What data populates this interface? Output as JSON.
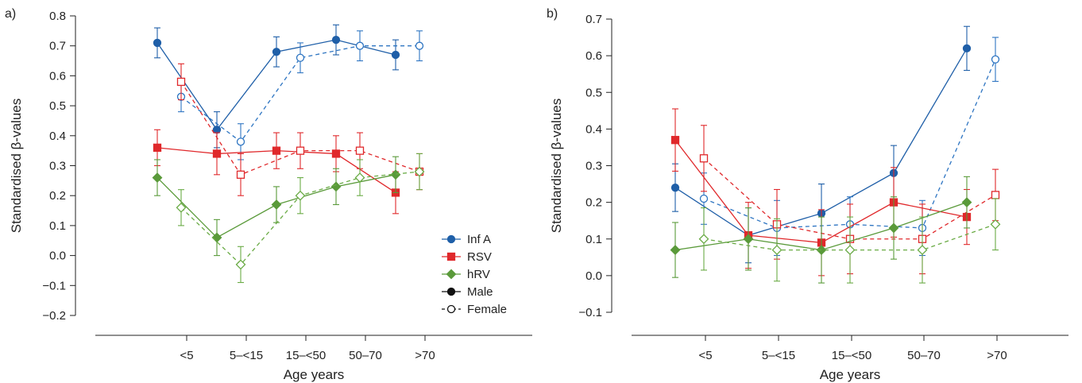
{
  "chart_data": [
    {
      "type": "line",
      "panel_label": "a)",
      "xlabel": "Age years",
      "ylabel": "Standardised β-values",
      "categories": [
        "<5",
        "5–<15",
        "15–<50",
        "50–70",
        ">70"
      ],
      "ylim": [
        -0.2,
        0.8
      ],
      "yticks": [
        "0.8",
        "0.7",
        "0.6",
        "0.5",
        "0.4",
        "0.3",
        "0.2",
        "0.1",
        "0.0",
        "−0.1",
        "−0.2"
      ],
      "grid": false,
      "legend_position": "bottom-right",
      "series": [
        {
          "name": "Inf A",
          "sex": "Male",
          "color": "#1f5fa8",
          "values": [
            0.71,
            0.42,
            0.68,
            0.72,
            0.67
          ],
          "err": [
            0.05,
            0.06,
            0.05,
            0.05,
            0.05
          ]
        },
        {
          "name": "Inf A",
          "sex": "Female",
          "color": "#2e75c2",
          "values": [
            0.53,
            0.38,
            0.66,
            0.7,
            0.7
          ],
          "err": [
            0.05,
            0.06,
            0.05,
            0.05,
            0.05
          ]
        },
        {
          "name": "RSV",
          "sex": "Male",
          "color": "#e0282b",
          "values": [
            0.36,
            0.34,
            0.35,
            0.34,
            0.21
          ],
          "err": [
            0.06,
            0.07,
            0.06,
            0.06,
            0.07
          ]
        },
        {
          "name": "RSV",
          "sex": "Female",
          "color": "#e0282b",
          "values": [
            0.58,
            0.27,
            0.35,
            0.35,
            0.28
          ],
          "err": [
            0.06,
            0.07,
            0.06,
            0.06,
            0.06
          ]
        },
        {
          "name": "hRV",
          "sex": "Male",
          "color": "#5a9a3a",
          "values": [
            0.26,
            0.06,
            0.17,
            0.23,
            0.27
          ],
          "err": [
            0.06,
            0.06,
            0.06,
            0.06,
            0.06
          ]
        },
        {
          "name": "hRV",
          "sex": "Female",
          "color": "#6aab45",
          "values": [
            0.16,
            -0.03,
            0.2,
            0.26,
            0.28
          ],
          "err": [
            0.06,
            0.06,
            0.06,
            0.06,
            0.06
          ]
        }
      ],
      "legend": [
        {
          "label": "Inf A",
          "marker": "circle",
          "color": "#1f5fa8"
        },
        {
          "label": "RSV",
          "marker": "square",
          "color": "#e0282b"
        },
        {
          "label": "hRV",
          "marker": "diamond",
          "color": "#5a9a3a"
        },
        {
          "label": "Male",
          "marker": "circle",
          "color": "#111111",
          "dash": "solid"
        },
        {
          "label": "Female",
          "marker": "circle-open",
          "color": "#111111",
          "dash": "dashed"
        }
      ]
    },
    {
      "type": "line",
      "panel_label": "b)",
      "xlabel": "Age years",
      "ylabel": "Standardised β-values",
      "categories": [
        "<5",
        "5–<15",
        "15–<50",
        "50–70",
        ">70"
      ],
      "ylim": [
        -0.1,
        0.7
      ],
      "yticks": [
        "0.7",
        "0.6",
        "0.5",
        "0.4",
        "0.3",
        "0.2",
        "0.1",
        "0.0",
        "−0.1"
      ],
      "grid": false,
      "series": [
        {
          "name": "Inf A",
          "sex": "Male",
          "color": "#1f5fa8",
          "values": [
            0.24,
            0.11,
            0.17,
            0.28,
            0.62
          ],
          "err": [
            0.065,
            0.075,
            0.08,
            0.075,
            0.06
          ]
        },
        {
          "name": "Inf A",
          "sex": "Female",
          "color": "#2e75c2",
          "values": [
            0.21,
            0.13,
            0.14,
            0.13,
            0.59
          ],
          "err": [
            0.07,
            0.075,
            0.075,
            0.075,
            0.06
          ]
        },
        {
          "name": "RSV",
          "sex": "Male",
          "color": "#e0282b",
          "values": [
            0.37,
            0.11,
            0.09,
            0.2,
            0.16
          ],
          "err": [
            0.085,
            0.09,
            0.09,
            0.095,
            0.075
          ]
        },
        {
          "name": "RSV",
          "sex": "Female",
          "color": "#e0282b",
          "values": [
            0.32,
            0.14,
            0.1,
            0.1,
            0.22
          ],
          "err": [
            0.09,
            0.095,
            0.095,
            0.095,
            0.07
          ]
        },
        {
          "name": "hRV",
          "sex": "Male",
          "color": "#5a9a3a",
          "values": [
            0.07,
            0.1,
            0.07,
            0.13,
            0.2
          ],
          "err": [
            0.075,
            0.085,
            0.09,
            0.085,
            0.07
          ]
        },
        {
          "name": "hRV",
          "sex": "Female",
          "color": "#6aab45",
          "values": [
            0.1,
            0.07,
            0.07,
            0.07,
            0.14
          ],
          "err": [
            0.085,
            0.085,
            0.09,
            0.09,
            0.07
          ]
        }
      ]
    }
  ]
}
